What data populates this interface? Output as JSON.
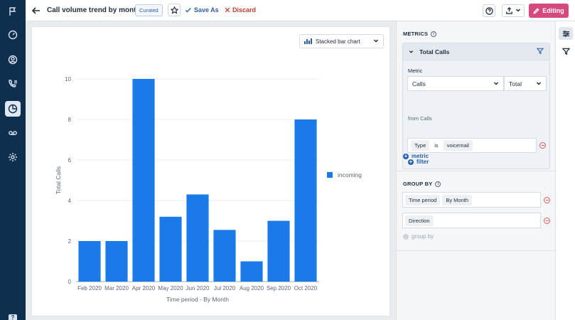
{
  "header": {
    "title": "Call volume trend by month",
    "badge": "Curated",
    "save_as": "Save As",
    "discard": "Discard",
    "editing": "Editing"
  },
  "chart_type_label": "Stacked bar chart",
  "chart_data": {
    "type": "bar",
    "stacked": true,
    "categories": [
      "Feb 2020",
      "Mar 2020",
      "Apr 2020",
      "May 2020",
      "Jun 2020",
      "Jul 2020",
      "Aug 2020",
      "Sep 2020",
      "Oct 2020"
    ],
    "series": [
      {
        "name": "incoming",
        "color": "#1a7be8",
        "values": [
          2,
          2,
          10,
          3.2,
          4.3,
          2.55,
          1,
          3,
          8
        ]
      }
    ],
    "xlabel": "Time period - By Month",
    "ylabel": "Total Calls",
    "ylim": [
      0,
      10
    ],
    "yticks": [
      0,
      2,
      4,
      6,
      8,
      10
    ],
    "legend_position": "right",
    "grid": true
  },
  "config": {
    "metrics_title": "METRICS",
    "metric_name": "Total Calls",
    "metric_label": "Metric",
    "metric_select": "Calls",
    "aggregation_select": "Total",
    "from_text": "from Calls",
    "filter": {
      "field": "Type",
      "op": "is",
      "value": "voicemail"
    },
    "add_filter": "filter",
    "add_metric": "metric",
    "group_by_title": "GROUP BY",
    "group_by_rows": [
      [
        "Time period",
        "By Month"
      ],
      [
        "Direction"
      ]
    ],
    "add_group_by": "group by"
  },
  "icons": {
    "rail": [
      "flag-icon",
      "gauge-icon",
      "user-circle-icon",
      "phone-list-icon",
      "pie-chart-icon",
      "voicemail-icon",
      "settings-icon"
    ],
    "strip": [
      "sliders-icon",
      "filter-icon"
    ]
  }
}
